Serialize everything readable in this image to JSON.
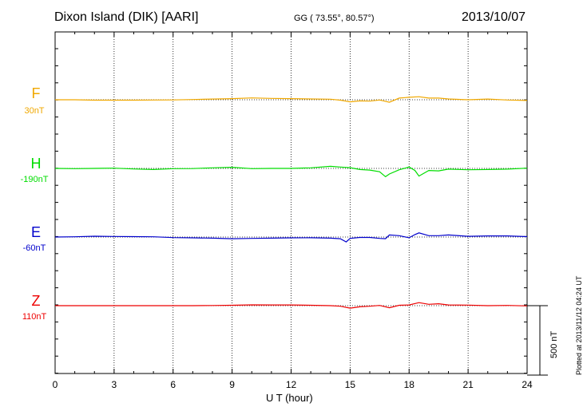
{
  "header": {
    "title": "Dixon Island (DIK)  [AARI]",
    "coords": "GG ( 73.55°,  80.57°)",
    "date": "2013/10/07"
  },
  "plotted_note": "Plotted at 2013/11/12 04:24 UT",
  "scale_label": "500 nT",
  "colors": {
    "F": "#f0a800",
    "H": "#00dd00",
    "E": "#0000cc",
    "Z": "#ee0000"
  },
  "chart_data": {
    "type": "line",
    "xlabel": "U T (hour)",
    "xlim": [
      0,
      24
    ],
    "xticks": [
      0,
      3,
      6,
      9,
      12,
      15,
      18,
      21,
      24
    ],
    "xtick_labels": [
      "0",
      "3",
      "6",
      "9",
      "12",
      "15",
      "18",
      "21",
      "24"
    ],
    "scale_bar_nT": 500,
    "grid": true,
    "series": [
      {
        "name": "F",
        "baseline": "30nT",
        "x": [
          0,
          1,
          2,
          3,
          4,
          5,
          6,
          7,
          8,
          9,
          10,
          11,
          12,
          13,
          14,
          14.5,
          15,
          15.5,
          16,
          16.5,
          17,
          17.5,
          18,
          18.5,
          19,
          19.5,
          20,
          21,
          22,
          23,
          24
        ],
        "y": [
          0,
          0,
          -3,
          -3,
          -3,
          -2,
          -1,
          2,
          5,
          8,
          13,
          10,
          8,
          6,
          4,
          -3,
          -15,
          -8,
          -10,
          -2,
          -18,
          12,
          18,
          22,
          12,
          12,
          6,
          0,
          5,
          -2,
          -5
        ]
      },
      {
        "name": "H",
        "baseline": "-190nT",
        "x": [
          0,
          1,
          2,
          3,
          4,
          5,
          6,
          7,
          8,
          9,
          10,
          11,
          12,
          13,
          14,
          14.5,
          15,
          15.5,
          16,
          16.5,
          16.8,
          17,
          17.5,
          18,
          18.3,
          18.5,
          19,
          19.5,
          20,
          21,
          22,
          23,
          24
        ],
        "y": [
          0,
          -2,
          0,
          2,
          -4,
          -8,
          -2,
          -1,
          4,
          8,
          -2,
          0,
          0,
          4,
          15,
          10,
          5,
          -8,
          -12,
          -24,
          -60,
          -40,
          -10,
          10,
          -15,
          -55,
          -15,
          -18,
          -5,
          -10,
          -8,
          -5,
          2
        ]
      },
      {
        "name": "E",
        "baseline": "-60nT",
        "x": [
          0,
          1,
          2,
          3,
          4,
          5,
          6,
          7,
          8,
          9,
          10,
          11,
          12,
          13,
          14,
          14.5,
          14.8,
          15,
          15.5,
          16,
          16.5,
          16.8,
          17,
          17.5,
          18,
          18.3,
          18.5,
          19,
          19.5,
          20,
          21,
          22,
          23,
          24
        ],
        "y": [
          0,
          2,
          6,
          4,
          3,
          2,
          -4,
          -6,
          -8,
          -12,
          -10,
          -8,
          -6,
          -5,
          -8,
          -12,
          -35,
          -10,
          -3,
          -3,
          -10,
          -12,
          15,
          10,
          -5,
          18,
          30,
          10,
          10,
          15,
          5,
          8,
          8,
          3
        ]
      },
      {
        "name": "Z",
        "baseline": "110nT",
        "x": [
          0,
          1,
          2,
          3,
          4,
          5,
          6,
          7,
          8,
          9,
          10,
          11,
          12,
          13,
          14,
          14.5,
          15,
          15.5,
          16,
          16.5,
          17,
          17.5,
          18,
          18.5,
          19,
          19.5,
          20,
          21,
          22,
          23,
          24
        ],
        "y": [
          0,
          0,
          0,
          0,
          0,
          0,
          0,
          0,
          1,
          3,
          6,
          5,
          5,
          3,
          0,
          -4,
          -18,
          -8,
          -4,
          2,
          -15,
          3,
          5,
          22,
          10,
          14,
          5,
          4,
          0,
          2,
          -2
        ]
      }
    ]
  }
}
